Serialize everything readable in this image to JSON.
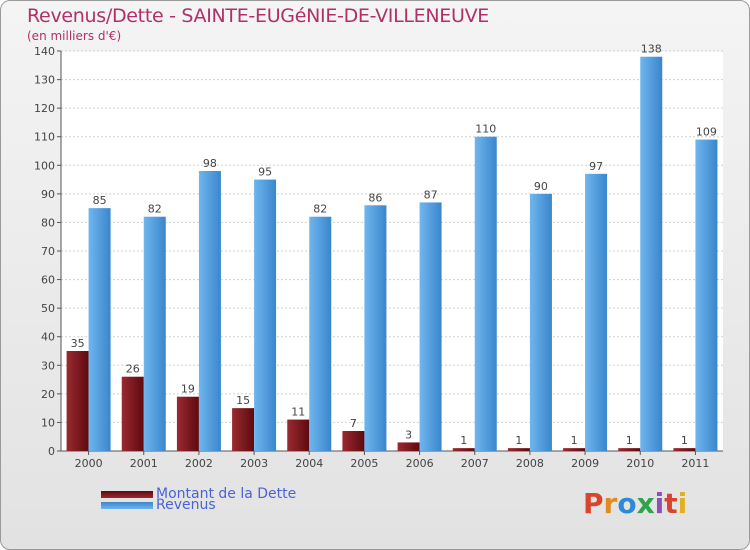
{
  "colors": {
    "dette": "#7a1016",
    "revenus": "#4f9fe0",
    "title": "#b0306a",
    "legend_text": "#4a63d6"
  },
  "chart_data": {
    "type": "bar",
    "title": "Revenus/Dette - SAINTE-EUGéNIE-DE-VILLENEUVE",
    "subtitle": "(en milliers d'€)",
    "categories": [
      "2000",
      "2001",
      "2002",
      "2003",
      "2004",
      "2005",
      "2006",
      "2007",
      "2008",
      "2009",
      "2010",
      "2011"
    ],
    "series": [
      {
        "name": "Montant de la Dette",
        "values": [
          35,
          26,
          19,
          15,
          11,
          7,
          3,
          1,
          1,
          1,
          1,
          1
        ]
      },
      {
        "name": "Revenus",
        "values": [
          85,
          82,
          98,
          95,
          82,
          86,
          87,
          110,
          90,
          97,
          138,
          109
        ]
      }
    ],
    "ylim": [
      0,
      140
    ],
    "yticks": [
      0,
      10,
      20,
      30,
      40,
      50,
      60,
      70,
      80,
      90,
      100,
      110,
      120,
      130,
      140
    ],
    "grid": true,
    "legend_position": "bottom-left"
  },
  "logo": {
    "text": "Proxiti",
    "letters": [
      {
        "ch": "P",
        "color": "#d8442c"
      },
      {
        "ch": "r",
        "color": "#e08a24"
      },
      {
        "ch": "o",
        "color": "#2f8ad6"
      },
      {
        "ch": "x",
        "color": "#2fa44a"
      },
      {
        "ch": "i",
        "color": "#8e4fb8"
      },
      {
        "ch": "t",
        "color": "#d8442c"
      },
      {
        "ch": "i",
        "color": "#e0b020"
      }
    ]
  }
}
